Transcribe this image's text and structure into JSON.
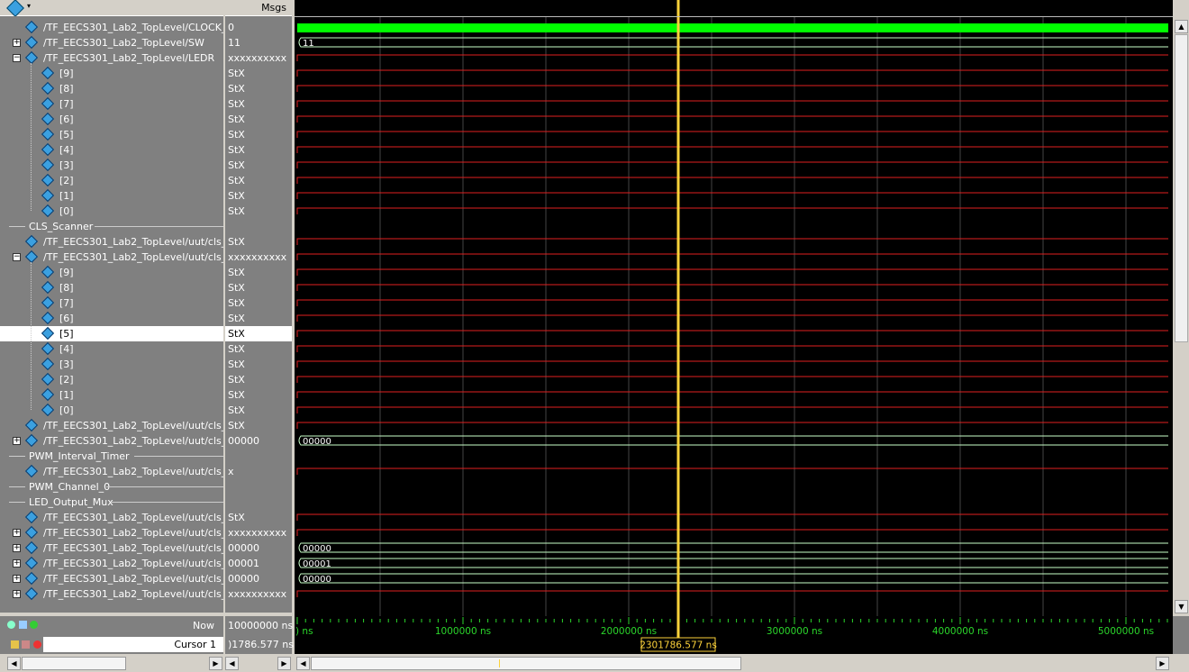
{
  "header": {
    "msgs_label": "Msgs"
  },
  "rows": [
    {
      "type": "sig",
      "indent": 0,
      "expander": "",
      "name": "/TF_EECS301_Lab2_TopLevel/CLOCK_50",
      "value": "0",
      "wave": "clock"
    },
    {
      "type": "sig",
      "indent": 0,
      "expander": "+",
      "name": "/TF_EECS301_Lab2_TopLevel/SW",
      "value": "11",
      "wave": "bus",
      "bus_label": "11"
    },
    {
      "type": "sig",
      "indent": 0,
      "expander": "-",
      "name": "/TF_EECS301_Lab2_TopLevel/LEDR",
      "value": "xxxxxxxxxx",
      "wave": "x"
    },
    {
      "type": "sig",
      "indent": 1,
      "expander": "",
      "name": "[9]",
      "value": "StX",
      "wave": "x"
    },
    {
      "type": "sig",
      "indent": 1,
      "expander": "",
      "name": "[8]",
      "value": "StX",
      "wave": "x"
    },
    {
      "type": "sig",
      "indent": 1,
      "expander": "",
      "name": "[7]",
      "value": "StX",
      "wave": "x"
    },
    {
      "type": "sig",
      "indent": 1,
      "expander": "",
      "name": "[6]",
      "value": "StX",
      "wave": "x"
    },
    {
      "type": "sig",
      "indent": 1,
      "expander": "",
      "name": "[5]",
      "value": "StX",
      "wave": "x"
    },
    {
      "type": "sig",
      "indent": 1,
      "expander": "",
      "name": "[4]",
      "value": "StX",
      "wave": "x"
    },
    {
      "type": "sig",
      "indent": 1,
      "expander": "",
      "name": "[3]",
      "value": "StX",
      "wave": "x"
    },
    {
      "type": "sig",
      "indent": 1,
      "expander": "",
      "name": "[2]",
      "value": "StX",
      "wave": "x"
    },
    {
      "type": "sig",
      "indent": 1,
      "expander": "",
      "name": "[1]",
      "value": "StX",
      "wave": "x"
    },
    {
      "type": "sig",
      "indent": 1,
      "expander": "",
      "name": "[0]",
      "value": "StX",
      "wave": "x"
    },
    {
      "type": "group",
      "name": "CLS_Scanner"
    },
    {
      "type": "sig",
      "indent": 0,
      "expander": "",
      "name": "/TF_EECS301_Lab2_TopLevel/uut/cls_...",
      "value": "StX",
      "wave": "x"
    },
    {
      "type": "sig",
      "indent": 0,
      "expander": "-",
      "name": "/TF_EECS301_Lab2_TopLevel/uut/cls_...",
      "value": "xxxxxxxxxx",
      "wave": "x"
    },
    {
      "type": "sig",
      "indent": 1,
      "expander": "",
      "name": "[9]",
      "value": "StX",
      "wave": "x"
    },
    {
      "type": "sig",
      "indent": 1,
      "expander": "",
      "name": "[8]",
      "value": "StX",
      "wave": "x"
    },
    {
      "type": "sig",
      "indent": 1,
      "expander": "",
      "name": "[7]",
      "value": "StX",
      "wave": "x"
    },
    {
      "type": "sig",
      "indent": 1,
      "expander": "",
      "name": "[6]",
      "value": "StX",
      "wave": "x"
    },
    {
      "type": "sig",
      "indent": 1,
      "expander": "",
      "name": "[5]",
      "value": "StX",
      "wave": "x",
      "selected": true
    },
    {
      "type": "sig",
      "indent": 1,
      "expander": "",
      "name": "[4]",
      "value": "StX",
      "wave": "x"
    },
    {
      "type": "sig",
      "indent": 1,
      "expander": "",
      "name": "[3]",
      "value": "StX",
      "wave": "x"
    },
    {
      "type": "sig",
      "indent": 1,
      "expander": "",
      "name": "[2]",
      "value": "StX",
      "wave": "x"
    },
    {
      "type": "sig",
      "indent": 1,
      "expander": "",
      "name": "[1]",
      "value": "StX",
      "wave": "x"
    },
    {
      "type": "sig",
      "indent": 1,
      "expander": "",
      "name": "[0]",
      "value": "StX",
      "wave": "x"
    },
    {
      "type": "sig",
      "indent": 0,
      "expander": "",
      "name": "/TF_EECS301_Lab2_TopLevel/uut/cls_...",
      "value": "StX",
      "wave": "x"
    },
    {
      "type": "sig",
      "indent": 0,
      "expander": "+",
      "name": "/TF_EECS301_Lab2_TopLevel/uut/cls_...",
      "value": "00000",
      "wave": "bus",
      "bus_label": "00000"
    },
    {
      "type": "group",
      "name": "PWM_Interval_Timer"
    },
    {
      "type": "sig",
      "indent": 0,
      "expander": "",
      "name": "/TF_EECS301_Lab2_TopLevel/uut/cls_...",
      "value": "x",
      "wave": "x"
    },
    {
      "type": "group",
      "name": "PWM_Channel_0"
    },
    {
      "type": "group",
      "name": "LED_Output_Mux"
    },
    {
      "type": "sig",
      "indent": 0,
      "expander": "",
      "name": "/TF_EECS301_Lab2_TopLevel/uut/cls_...",
      "value": "StX",
      "wave": "x"
    },
    {
      "type": "sig",
      "indent": 0,
      "expander": "+",
      "name": "/TF_EECS301_Lab2_TopLevel/uut/cls_...",
      "value": "xxxxxxxxxx",
      "wave": "x"
    },
    {
      "type": "sig",
      "indent": 0,
      "expander": "+",
      "name": "/TF_EECS301_Lab2_TopLevel/uut/cls_...",
      "value": "00000",
      "wave": "bus",
      "bus_label": "00000"
    },
    {
      "type": "sig",
      "indent": 0,
      "expander": "+",
      "name": "/TF_EECS301_Lab2_TopLevel/uut/cls_...",
      "value": "00001",
      "wave": "bus",
      "bus_label": "00001"
    },
    {
      "type": "sig",
      "indent": 0,
      "expander": "+",
      "name": "/TF_EECS301_Lab2_TopLevel/uut/cls_...",
      "value": "00000",
      "wave": "bus",
      "bus_label": "00000"
    },
    {
      "type": "sig",
      "indent": 0,
      "expander": "+",
      "name": "/TF_EECS301_Lab2_TopLevel/uut/cls_...",
      "value": "xxxxxxxxxx",
      "wave": "x"
    }
  ],
  "footer": {
    "now_label": "Now",
    "now_value": "10000000 ns",
    "cursor_label": "Cursor 1",
    "cursor_value": ")1786.577 ns"
  },
  "timeline": {
    "start_ns": 0,
    "end_ns": 5250000,
    "ticks": [
      {
        "t": 0,
        "label": ") ns"
      },
      {
        "t": 1000000,
        "label": "1000000 ns"
      },
      {
        "t": 2000000,
        "label": "2000000 ns"
      },
      {
        "t": 3000000,
        "label": "3000000 ns"
      },
      {
        "t": 4000000,
        "label": "4000000 ns"
      },
      {
        "t": 5000000,
        "label": "5000000 ns"
      }
    ],
    "cursor_ns": 2301786.577,
    "cursor_text": "2301786.577 ns"
  },
  "colors": {
    "clock": "#00ff00",
    "x": "#e02020",
    "bus": "#c8ffc8",
    "cursor": "#fcd23a",
    "grid": "#444444"
  }
}
